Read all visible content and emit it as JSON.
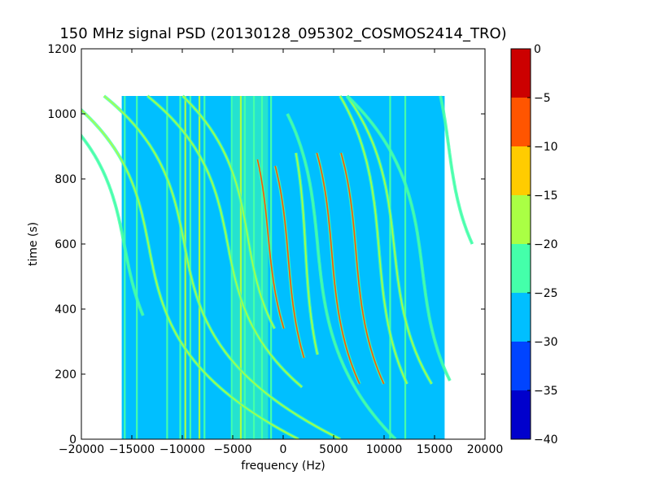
{
  "chart_data": {
    "type": "heatmap",
    "title": "150 MHz signal PSD (20130128_095302_COSMOS2414_TRO)",
    "xlabel": "frequency (Hz)",
    "ylabel": "time (s)",
    "xlim": [
      -20000,
      20000
    ],
    "ylim": [
      0,
      1200
    ],
    "xticks": [
      -20000,
      -15000,
      -10000,
      -5000,
      0,
      5000,
      10000,
      15000,
      20000
    ],
    "xtick_labels": [
      "−20000",
      "−15000",
      "−10000",
      "−5000",
      "0",
      "5000",
      "10000",
      "15000",
      "20000"
    ],
    "yticks": [
      0,
      200,
      400,
      600,
      800,
      1000,
      1200
    ],
    "ytick_labels": [
      "0",
      "200",
      "400",
      "600",
      "800",
      "1000",
      "1200"
    ],
    "data_extent": {
      "x": [
        -16000,
        16000
      ],
      "y": [
        0,
        1055
      ]
    },
    "background_level": -27.5,
    "colorbar": {
      "levels": [
        -40,
        -35,
        -30,
        -25,
        -20,
        -15,
        -10,
        -5,
        0
      ],
      "tick_labels": [
        "−40",
        "−35",
        "−30",
        "−25",
        "−20",
        "−15",
        "−10",
        "−5",
        "0"
      ],
      "colors": [
        "#0000cc",
        "#0044ff",
        "#00bfff",
        "#44ffaa",
        "#aaff44",
        "#ffcc00",
        "#ff5500",
        "#cc0000"
      ]
    },
    "vertical_bands": [
      {
        "x": -15700,
        "level": -22.5
      },
      {
        "x": -14500,
        "level": -22.5
      },
      {
        "x": -11500,
        "level": -22.5
      },
      {
        "x": -10200,
        "level": -22.5
      },
      {
        "x": -9700,
        "level": -17.5
      },
      {
        "x": -9200,
        "level": -22.5
      },
      {
        "x": -8300,
        "level": -17.5
      },
      {
        "x": -7800,
        "level": -22.5
      },
      {
        "x": -5100,
        "level": -22.5
      },
      {
        "x": -4200,
        "level": -17.5
      },
      {
        "x": -3800,
        "level": -22.5
      },
      {
        "x": -2900,
        "level": -22.5
      },
      {
        "x": -2100,
        "level": -22.5
      },
      {
        "x": -1200,
        "level": -22.5
      },
      {
        "x": 10600,
        "level": -22.5
      },
      {
        "x": 12100,
        "level": -22.5
      }
    ],
    "doppler_traces": [
      {
        "name": "a",
        "center": [
          -15700,
          590
        ],
        "amp": 5000,
        "top": 1055,
        "bottom": 380,
        "level": -22.5
      },
      {
        "name": "b",
        "center": [
          -13300,
          590
        ],
        "amp": 5000,
        "top": 1055,
        "bottom": 0,
        "level": -17.5
      },
      {
        "name": "c",
        "center": [
          -9800,
          600
        ],
        "amp": 5000,
        "top": 1055,
        "bottom": 0,
        "level": -17.5
      },
      {
        "name": "d",
        "center": [
          -5500,
          600
        ],
        "amp": 5000,
        "top": 1055,
        "bottom": 160,
        "level": -17.5
      },
      {
        "name": "e",
        "center": [
          -3500,
          620
        ],
        "amp": 4500,
        "top": 1055,
        "bottom": 340,
        "level": -17.5
      },
      {
        "name": "f",
        "center": [
          -1500,
          630
        ],
        "amp": 2500,
        "top": 860,
        "bottom": 340,
        "level": -10
      },
      {
        "name": "g",
        "center": [
          500,
          560
        ],
        "amp": 2200,
        "top": 840,
        "bottom": 250,
        "level": -10
      },
      {
        "name": "h",
        "center": [
          2200,
          590
        ],
        "amp": 1500,
        "top": 880,
        "bottom": 260,
        "level": -17.5
      },
      {
        "name": "i",
        "center": [
          3400,
          600
        ],
        "amp": 2500,
        "top": 1000,
        "bottom": 0,
        "level": -22.5
      },
      {
        "name": "j",
        "center": [
          4800,
          580
        ],
        "amp": 2200,
        "top": 880,
        "bottom": 170,
        "level": -10
      },
      {
        "name": "k",
        "center": [
          7200,
          580
        ],
        "amp": 2200,
        "top": 880,
        "bottom": 170,
        "level": -10
      },
      {
        "name": "l",
        "center": [
          9500,
          580
        ],
        "amp": 2200,
        "top": 1055,
        "bottom": 170,
        "level": -17.5
      },
      {
        "name": "m",
        "center": [
          11000,
          590
        ],
        "amp": 2800,
        "top": 1055,
        "bottom": 170,
        "level": -17.5
      },
      {
        "name": "n",
        "center": [
          13800,
          520
        ],
        "amp": 3200,
        "top": 1055,
        "bottom": 180,
        "level": -22.5
      },
      {
        "name": "o",
        "center": [
          16400,
          900
        ],
        "amp": 3500,
        "top": 1055,
        "bottom": 600,
        "level": -22.5
      }
    ]
  }
}
